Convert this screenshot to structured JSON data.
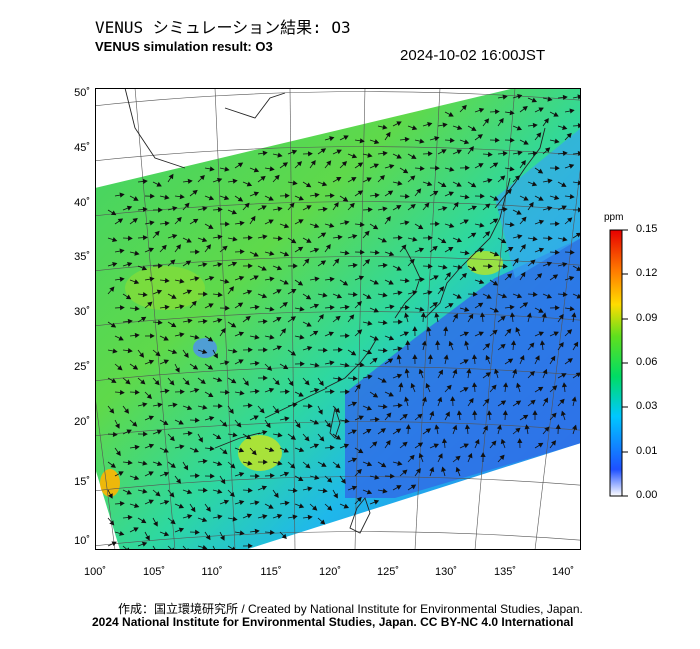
{
  "title_jp": "VENUS シミュレーション結果: O3",
  "title_en": "VENUS simulation result: O3",
  "timestamp": "2024-10-02 16:00JST",
  "map": {
    "lat_labels": [
      "50˚",
      "45˚",
      "40˚",
      "35˚",
      "30˚",
      "25˚",
      "20˚",
      "15˚",
      "10˚"
    ],
    "lon_labels": [
      "100˚",
      "105˚",
      "110˚",
      "115˚",
      "120˚",
      "125˚",
      "130˚",
      "135˚",
      "140˚"
    ]
  },
  "colorbar": {
    "unit": "ppm",
    "labels": [
      "0.15",
      "0.12",
      "0.09",
      "0.06",
      "0.03",
      "0.01",
      "0.00"
    ],
    "colors": [
      "#ffffff",
      "#1e50ff",
      "#00c8ff",
      "#00dc64",
      "#96e61e",
      "#ffdc00",
      "#ff7800",
      "#e60000"
    ]
  },
  "credits": {
    "line1": "作成：国立環境研究所 / Created by National Institute for Environmental Studies, Japan.",
    "line2": "2024 National Institute for Environmental Studies, Japan. CC BY-NC 4.0 International"
  }
}
